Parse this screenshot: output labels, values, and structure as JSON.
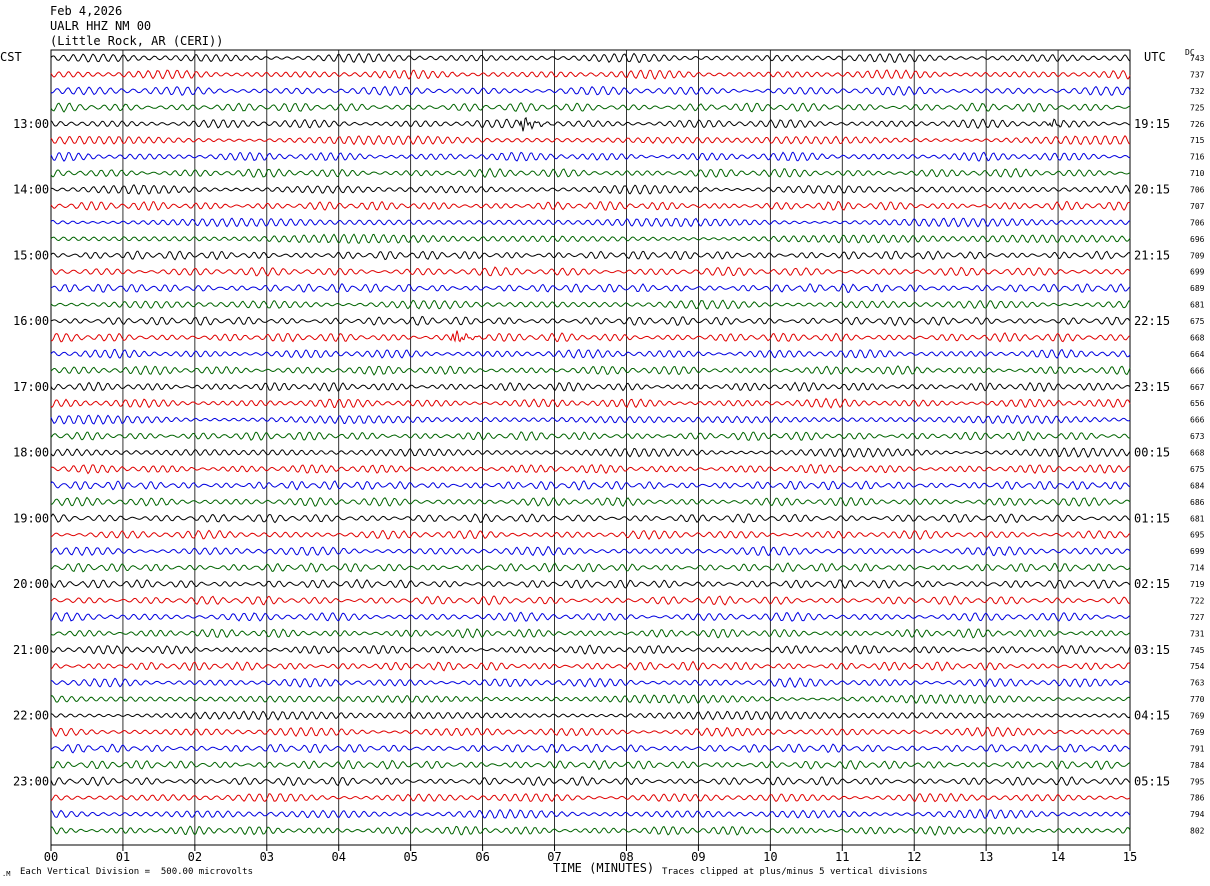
{
  "header": {
    "date": "Feb 4,2026",
    "station": "UALR HHZ NM 00",
    "location": "(Little Rock, AR (CERI))"
  },
  "left_axis_label": "CST",
  "right_axis_label": "UTC",
  "dc_label": "DC",
  "footer": {
    "scale_note": "Each Vertical Division =  500.00 microvolts",
    "clip_note": "Traces clipped at plus/minus 5 vertical divisions",
    "xlabel": "TIME (MINUTES)"
  },
  "chart_data": {
    "type": "line",
    "title": "UALR HHZ NM 00",
    "xlabel": "TIME (MINUTES)",
    "x_range": [
      0,
      15
    ],
    "x_ticks": [
      "00",
      "01",
      "02",
      "03",
      "04",
      "05",
      "06",
      "07",
      "08",
      "09",
      "10",
      "11",
      "12",
      "13",
      "14",
      "15"
    ],
    "trace_colors": [
      "#000000",
      "#e00000",
      "#0000e0",
      "#006400"
    ],
    "traces_per_hour": 4,
    "minutes_per_trace": 15,
    "grid": true,
    "left_hour_labels": [
      "13:00",
      "14:00",
      "15:00",
      "16:00",
      "17:00",
      "18:00",
      "19:00",
      "20:00",
      "21:00",
      "22:00",
      "23:00"
    ],
    "right_hour_labels": [
      "19:15",
      "20:15",
      "21:15",
      "22:15",
      "23:15",
      "00:15",
      "01:15",
      "02:15",
      "03:15",
      "04:15",
      "05:15"
    ],
    "dc_offsets": [
      743,
      737,
      732,
      725,
      726,
      715,
      716,
      710,
      706,
      707,
      706,
      696,
      709,
      699,
      689,
      681,
      675,
      668,
      664,
      666,
      667,
      656,
      666,
      673,
      668,
      675,
      684,
      686,
      681,
      695,
      699,
      714,
      719,
      722,
      727,
      731,
      745,
      754,
      763,
      770,
      769,
      769,
      791,
      784,
      795,
      786,
      794,
      802
    ],
    "events": [
      {
        "trace": 4,
        "minute": 6.55,
        "amplitude": "moderate"
      },
      {
        "trace": 4,
        "minute": 13.9,
        "amplitude": "small"
      },
      {
        "trace": 17,
        "minute": 5.6,
        "amplitude": "moderate"
      }
    ]
  }
}
